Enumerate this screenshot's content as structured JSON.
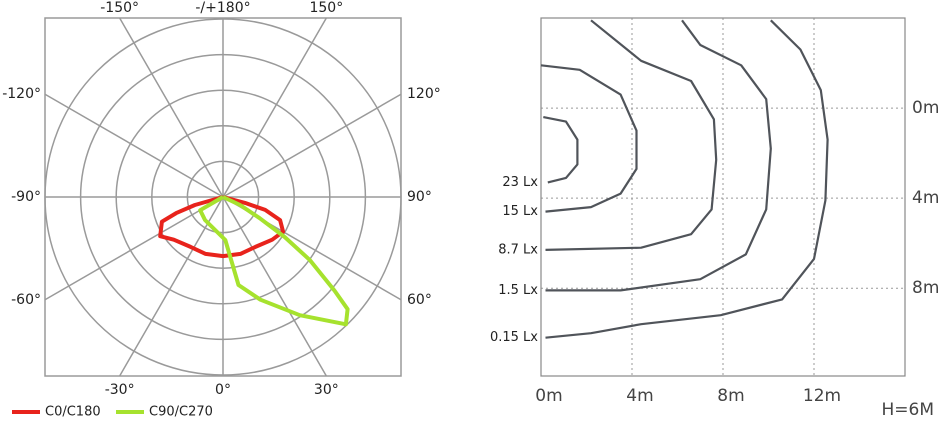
{
  "chart_data": [
    {
      "type": "polar",
      "angle_ticks": [
        {
          "value": 180,
          "label": "-/+180°"
        },
        {
          "value": 150,
          "label": "150°"
        },
        {
          "value": 120,
          "label": "120°"
        },
        {
          "value": 90,
          "label": "90°"
        },
        {
          "value": 60,
          "label": "60°"
        },
        {
          "value": 30,
          "label": "30°"
        },
        {
          "value": 0,
          "label": "0°"
        },
        {
          "value": -30,
          "label": "-30°"
        },
        {
          "value": -60,
          "label": "-60°"
        },
        {
          "value": -90,
          "label": "-90°"
        },
        {
          "value": -120,
          "label": "-120°"
        },
        {
          "value": -150,
          "label": "-150°"
        }
      ],
      "rlim": [
        0,
        5
      ],
      "rticks": [
        1,
        2,
        3,
        4,
        5
      ],
      "grid": true,
      "series": [
        {
          "name": "C0/C180",
          "color": "#e8231c",
          "theta": [
            90,
            75,
            73,
            68,
            60,
            49,
            33,
            17,
            0,
            -17,
            -33,
            -49,
            -58,
            -68,
            -71,
            -74,
            90
          ],
          "r": [
            0,
            0.64,
            1.24,
            1.73,
            1.95,
            1.83,
            1.67,
            1.67,
            1.66,
            1.67,
            1.67,
            1.83,
            2.08,
            1.85,
            1.39,
            0.82,
            0
          ]
        },
        {
          "name": "C90/C270",
          "color": "#a6e22e",
          "theta": [
            90,
            -60,
            -38,
            3,
            10,
            20,
            33,
            44,
            48,
            50,
            54,
            57,
            60,
            65,
            90
          ],
          "r": [
            0,
            0.74,
            0.82,
            1.21,
            2.51,
            3.07,
            3.96,
            4.97,
            4.71,
            4.09,
            3.02,
            2.07,
            1.19,
            0.53,
            0
          ]
        }
      ]
    },
    {
      "type": "contour",
      "xlim": [
        0,
        16
      ],
      "ylim": [
        -4,
        11.9
      ],
      "y_inverted": true,
      "xticks": [
        {
          "value": 0,
          "label": "0m"
        },
        {
          "value": 4,
          "label": "4m"
        },
        {
          "value": 8,
          "label": "8m"
        },
        {
          "value": 12,
          "label": "12m"
        }
      ],
      "yticks": [
        {
          "value": 0,
          "label": "0m"
        },
        {
          "value": 4,
          "label": "4m"
        },
        {
          "value": 8,
          "label": "8m"
        }
      ],
      "grid": true,
      "annotation": "H=6M",
      "series": [
        {
          "name": "23 Lx",
          "color": "#50545a",
          "x": [
            0.1,
            1.1,
            1.6,
            1.6,
            1.1,
            0.3
          ],
          "y": [
            0.4,
            0.6,
            1.4,
            2.5,
            3.1,
            3.3
          ]
        },
        {
          "name": "15 Lx",
          "color": "#50545a",
          "x": [
            0,
            1.7,
            3.5,
            4.2,
            4.2,
            3.5,
            2.2,
            0.2
          ],
          "y": [
            -1.9,
            -1.7,
            -0.6,
            1.0,
            2.7,
            3.8,
            4.4,
            4.6
          ]
        },
        {
          "name": "8.7 Lx",
          "color": "#50545a",
          "x": [
            2.2,
            4.4,
            6.6,
            7.6,
            7.7,
            7.5,
            6.6,
            4.4,
            0.2
          ],
          "y": [
            -3.9,
            -2.1,
            -1.2,
            0.5,
            2.3,
            4.5,
            5.6,
            6.2,
            6.3
          ]
        },
        {
          "name": "1.5 Lx",
          "color": "#50545a",
          "x": [
            6.2,
            7.0,
            8.8,
            9.9,
            10.1,
            9.9,
            9.0,
            7.0,
            3.5,
            0.2
          ],
          "y": [
            -3.9,
            -2.8,
            -1.9,
            -0.4,
            1.8,
            4.5,
            6.5,
            7.6,
            8.1,
            8.1
          ]
        },
        {
          "name": "0.15 Lx",
          "color": "#50545a",
          "x": [
            10.1,
            11.4,
            12.3,
            12.6,
            12.5,
            12.0,
            10.6,
            7.9,
            4.4,
            2.2,
            0.2
          ],
          "y": [
            -3.9,
            -2.6,
            -0.8,
            1.4,
            4.1,
            6.7,
            8.5,
            9.2,
            9.6,
            10.0,
            10.2
          ]
        }
      ]
    }
  ]
}
